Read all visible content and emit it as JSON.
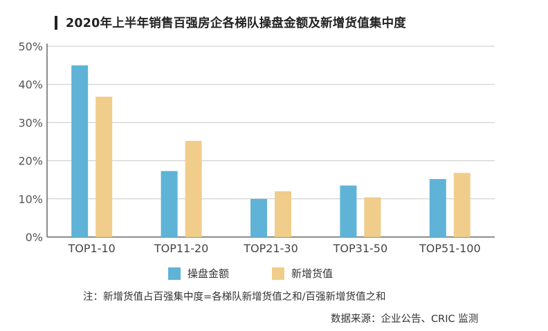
{
  "title": "2020年上半年销售百强房企各梯队操盘金额及新增货值集中度",
  "note": "注：新增货值占百强集中度=各梯队新增货值之和/百强新增货值之和",
  "source": "数据来源：企业公告、CRIC 监测",
  "colors": {
    "series1": "#5fb3d6",
    "series2": "#f0cd8b",
    "grid": "#c8c8c8",
    "axis": "#666666"
  },
  "chart_data": {
    "type": "bar",
    "title": "2020年上半年销售百强房企各梯队操盘金额及新增货值集中度",
    "categories": [
      "TOP1-10",
      "TOP11-20",
      "TOP21-30",
      "TOP31-50",
      "TOP51-100"
    ],
    "series": [
      {
        "name": "操盘金额",
        "values": [
          45,
          17.3,
          10,
          13.5,
          15.2
        ]
      },
      {
        "name": "新增货值",
        "values": [
          36.8,
          25.2,
          12,
          10.4,
          16.8
        ]
      }
    ],
    "ylim": [
      0,
      50
    ],
    "yticks": [
      "0%",
      "10%",
      "20%",
      "30%",
      "40%",
      "50%"
    ],
    "grid": true,
    "legend": "bottom"
  }
}
